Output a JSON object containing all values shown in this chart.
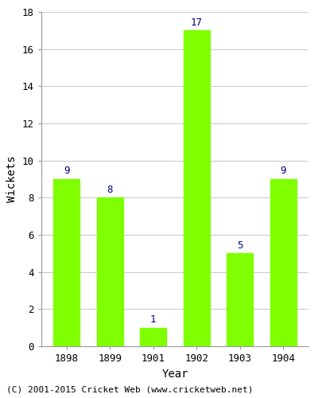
{
  "years": [
    "1898",
    "1899",
    "1901",
    "1902",
    "1903",
    "1904"
  ],
  "wickets": [
    9,
    8,
    1,
    17,
    5,
    9
  ],
  "bar_color": "#7fff00",
  "label_color": "#000080",
  "xlabel": "Year",
  "ylabel": "Wickets",
  "ylim": [
    0,
    18
  ],
  "yticks": [
    0,
    2,
    4,
    6,
    8,
    10,
    12,
    14,
    16,
    18
  ],
  "footnote": "(C) 2001-2015 Cricket Web (www.cricketweb.net)",
  "background_color": "#ffffff",
  "plot_background": "#ffffff",
  "label_fontsize": 9,
  "axis_label_fontsize": 10,
  "tick_fontsize": 9,
  "footnote_fontsize": 8,
  "bar_width": 0.6,
  "grid_color": "#cccccc"
}
